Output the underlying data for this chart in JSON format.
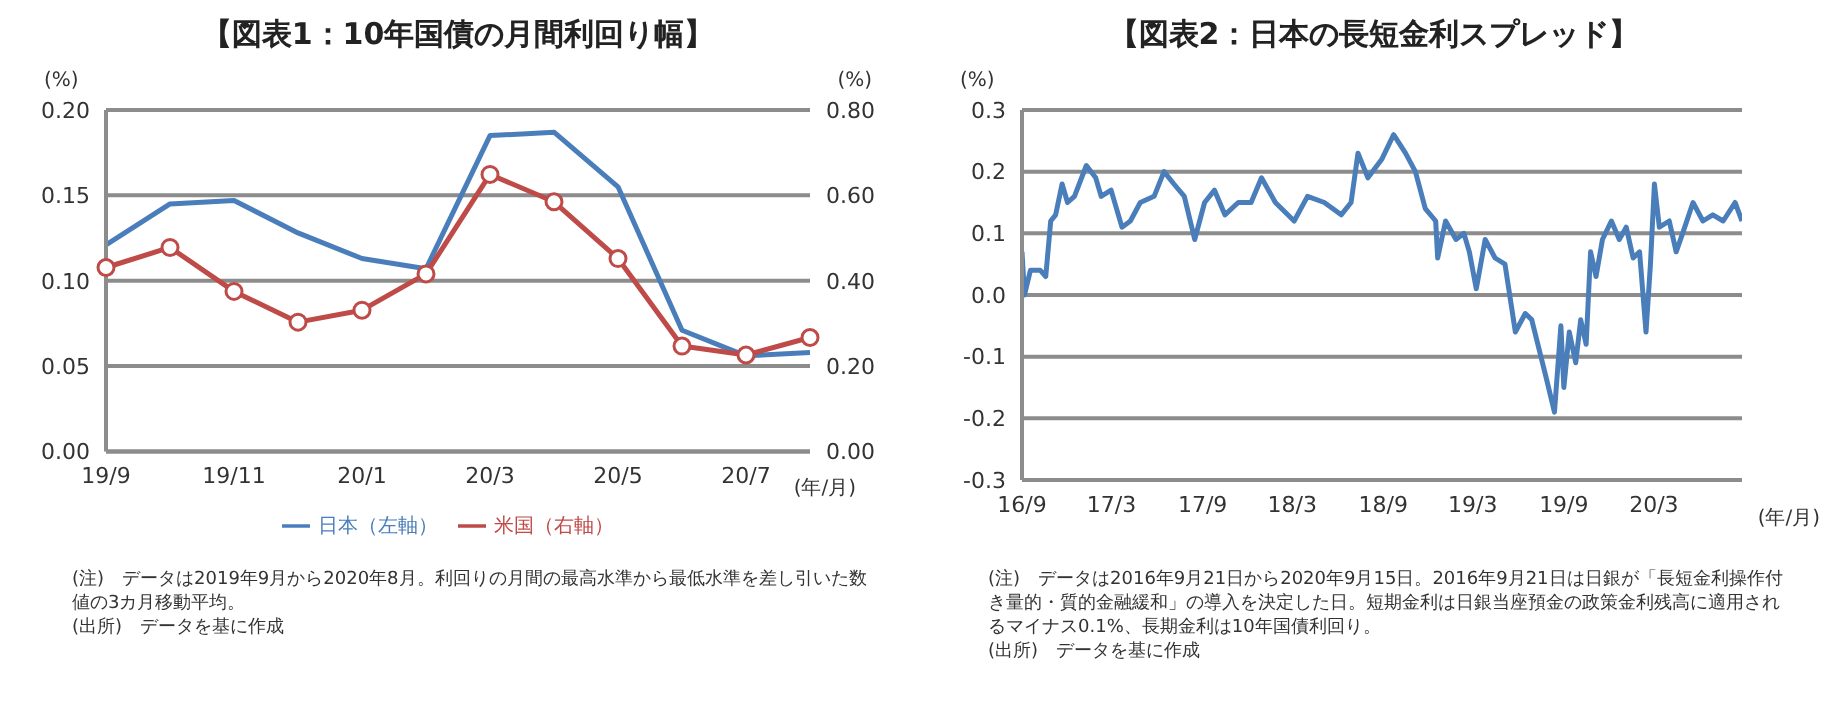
{
  "chart_data": [
    {
      "type": "line",
      "title": "【図表1：10年国債の月間利回り幅】",
      "categories": [
        "19/9",
        null,
        "19/11",
        null,
        "20/1",
        null,
        "20/3",
        null,
        "20/5",
        null,
        "20/7",
        null
      ],
      "series": [
        {
          "name": "日本（左軸）",
          "color": "#4a7ebb",
          "marker": "none",
          "values": [
            0.121,
            0.145,
            0.147,
            0.128,
            0.113,
            0.107,
            0.185,
            0.187,
            0.155,
            0.071,
            0.056,
            0.058
          ]
        },
        {
          "name": "米国（右軸）",
          "color": "#be4b48",
          "marker": "circle",
          "axis": "y2",
          "values": [
            0.431,
            0.478,
            0.375,
            0.303,
            0.331,
            0.416,
            0.649,
            0.585,
            0.452,
            0.247,
            0.226,
            0.267
          ]
        }
      ],
      "ylim": [
        0,
        0.2
      ],
      "yticks": [
        {
          "value": 0,
          "label": "0.00"
        },
        {
          "value": 0.05,
          "label": "0.05"
        },
        {
          "value": 0.1,
          "label": "0.10"
        },
        {
          "value": 0.15,
          "label": "0.15"
        },
        {
          "value": 0.2,
          "label": "0.20"
        }
      ],
      "y2lim": [
        0,
        0.8
      ],
      "y2ticks": [
        {
          "value": 0,
          "label": "0.00"
        },
        {
          "value": 0.2,
          "label": "0.20"
        },
        {
          "value": 0.4,
          "label": "0.40"
        },
        {
          "value": 0.6,
          "label": "0.60"
        },
        {
          "value": 0.8,
          "label": "0.80"
        }
      ],
      "ylabel": "(%)",
      "y2label": "(%)",
      "xlabel": "(年/月)",
      "grid": "y",
      "legend": "bottom",
      "annotations": [
        "(注)　データは2019年9月から2020年8月。利回りの月間の最高水準から最低水準を差し引いた数値の3カ月移動平均。",
        "(出所)　データを基に作成"
      ]
    },
    {
      "type": "line",
      "title": "【図表2：日本の長短金利スプレッド】",
      "series": [
        {
          "color": "#4a7ebb",
          "x": [
            "2016-09-21",
            "2016-09-26",
            "2016-10-08",
            "2016-10-28",
            "2016-11-08",
            "2016-11-18",
            "2016-11-28",
            "2016-12-11",
            "2016-12-22",
            "2017-01-05",
            "2017-01-29",
            "2017-02-17",
            "2017-02-28",
            "2017-03-20",
            "2017-04-11",
            "2017-04-28",
            "2017-05-18",
            "2017-06-15",
            "2017-07-05",
            "2017-07-25",
            "2017-08-15",
            "2017-09-05",
            "2017-09-25",
            "2017-10-15",
            "2017-11-05",
            "2017-12-02",
            "2017-12-28",
            "2018-01-18",
            "2018-02-15",
            "2018-03-25",
            "2018-04-21",
            "2018-05-25",
            "2018-06-28",
            "2018-07-18",
            "2018-08-01",
            "2018-08-21",
            "2018-09-18",
            "2018-10-12",
            "2018-11-05",
            "2018-11-25",
            "2018-12-15",
            "2019-01-05",
            "2019-01-09",
            "2019-01-25",
            "2019-02-15",
            "2019-03-03",
            "2019-03-14",
            "2019-03-28",
            "2019-04-15",
            "2019-05-05",
            "2019-05-25",
            "2019-06-15",
            "2019-07-05",
            "2019-07-18",
            "2019-08-15",
            "2019-09-02",
            "2019-09-15",
            "2019-09-21",
            "2019-10-02",
            "2019-10-15",
            "2019-10-25",
            "2019-11-05",
            "2019-11-14",
            "2019-11-25",
            "2019-12-08",
            "2019-12-26",
            "2020-01-11",
            "2020-01-25",
            "2020-02-08",
            "2020-02-21",
            "2020-03-05",
            "2020-03-14",
            "2020-03-22",
            "2020-04-01",
            "2020-04-21",
            "2020-05-05",
            "2020-05-18",
            "2020-06-08",
            "2020-06-28",
            "2020-07-18",
            "2020-08-08",
            "2020-09-01",
            "2020-09-15"
          ],
          "values": [
            0.07,
            0.0,
            0.04,
            0.04,
            0.03,
            0.12,
            0.13,
            0.18,
            0.15,
            0.16,
            0.21,
            0.19,
            0.16,
            0.17,
            0.11,
            0.12,
            0.15,
            0.16,
            0.2,
            0.18,
            0.16,
            0.09,
            0.15,
            0.17,
            0.13,
            0.15,
            0.15,
            0.19,
            0.15,
            0.12,
            0.16,
            0.15,
            0.13,
            0.15,
            0.23,
            0.19,
            0.22,
            0.26,
            0.23,
            0.2,
            0.14,
            0.12,
            0.06,
            0.12,
            0.09,
            0.1,
            0.07,
            0.01,
            0.09,
            0.06,
            0.05,
            -0.06,
            -0.03,
            -0.04,
            -0.13,
            -0.19,
            -0.05,
            -0.15,
            -0.06,
            -0.11,
            -0.04,
            -0.08,
            0.07,
            0.03,
            0.09,
            0.12,
            0.09,
            0.11,
            0.06,
            0.07,
            -0.06,
            0.05,
            0.18,
            0.11,
            0.12,
            0.07,
            0.1,
            0.15,
            0.12,
            0.13,
            0.12,
            0.15,
            0.12
          ]
        }
      ],
      "xlim": [
        "2016-09-21",
        "2020-09-15"
      ],
      "xticks": [
        {
          "value": "2016-09-21",
          "label": "16/9"
        },
        {
          "value": "2017-03-21",
          "label": "17/3"
        },
        {
          "value": "2017-09-21",
          "label": "17/9"
        },
        {
          "value": "2018-03-21",
          "label": "18/3"
        },
        {
          "value": "2018-09-21",
          "label": "18/9"
        },
        {
          "value": "2019-03-21",
          "label": "19/3"
        },
        {
          "value": "2019-09-21",
          "label": "19/9"
        },
        {
          "value": "2020-03-21",
          "label": "20/3"
        }
      ],
      "ylim": [
        -0.3,
        0.3
      ],
      "yticks": [
        -0.3,
        -0.2,
        -0.1,
        {
          "value": 0,
          "label": "0.0"
        },
        0.1,
        0.2,
        0.3
      ],
      "ylabel": "(%)",
      "xlabel": "(年/月)",
      "grid": "y",
      "marker": "none",
      "annotations": [
        "(注)　データは2016年9月21日から2020年9月15日。2016年9月21日は日銀が「長短金利操作付き量的・質的金融緩和」の導入を決定した日。短期金利は日銀当座預金の政策金利残高に適用されるマイナス0.1%、長期金利は10年国債利回り。",
        "(出所)　データを基に作成"
      ]
    }
  ]
}
